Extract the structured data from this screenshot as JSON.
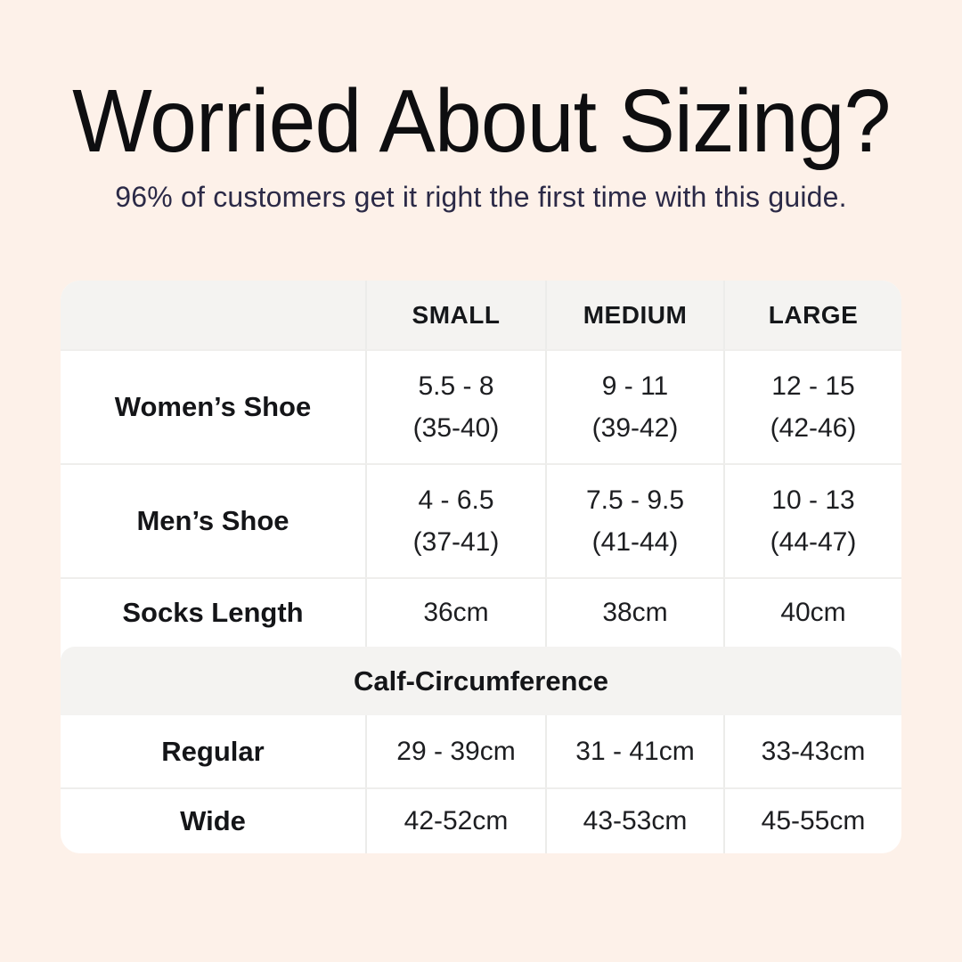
{
  "page": {
    "background_color": "#fdf1e9",
    "panel_color": "#ffffff",
    "band_color": "#f4f3f1",
    "title_color": "#0e0e10",
    "subtitle_color": "#2b2a47"
  },
  "header": {
    "title": "Worried About Sizing?",
    "subtitle": "96% of customers get it right the first time with this guide."
  },
  "size_table": {
    "columns": {
      "size_small": "SMALL",
      "size_medium": "MEDIUM",
      "size_large": "LARGE"
    },
    "rows": [
      {
        "label": "Women’s Shoe",
        "small_line1": "5.5 - 8",
        "small_line2": "(35-40)",
        "medium_line1": "9 - 11",
        "medium_line2": "(39-42)",
        "large_line1": "12 - 15",
        "large_line2": "(42-46)"
      },
      {
        "label": "Men’s Shoe",
        "small_line1": "4 - 6.5",
        "small_line2": "(37-41)",
        "medium_line1": "7.5 - 9.5",
        "medium_line2": "(41-44)",
        "large_line1": "10 - 13",
        "large_line2": "(44-47)"
      },
      {
        "label": "Socks Length",
        "small": "36cm",
        "medium": "38cm",
        "large": "40cm"
      }
    ],
    "section": {
      "title": "Calf-Circumference"
    },
    "calf_rows": [
      {
        "label": "Regular",
        "small": "29 - 39cm",
        "medium": "31 - 41cm",
        "large": "33-43cm"
      },
      {
        "label": "Wide",
        "small": "42-52cm",
        "medium": "43-53cm",
        "large": "45-55cm"
      }
    ]
  }
}
